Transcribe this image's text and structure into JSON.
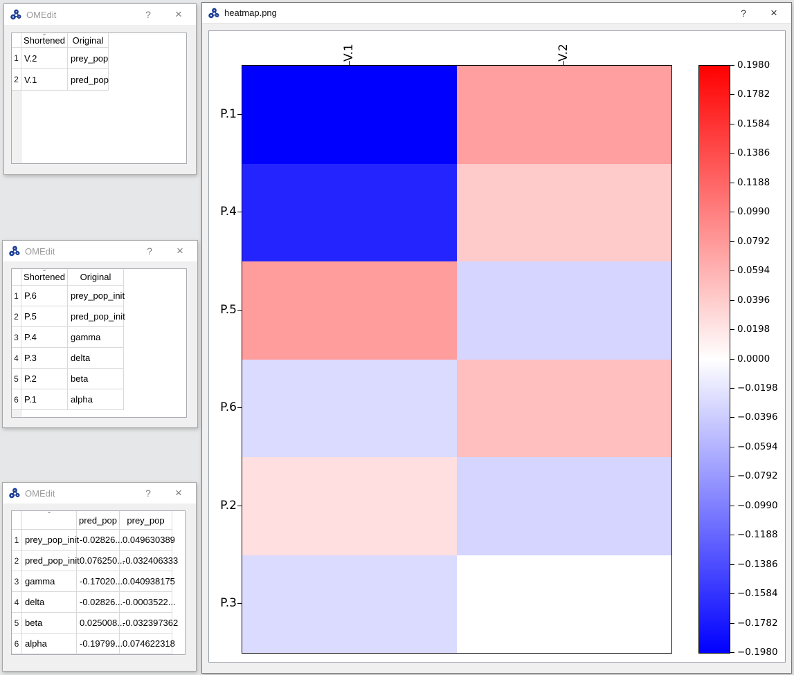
{
  "chrome": {
    "help_glyph": "?",
    "close_glyph": "×",
    "sort_glyph": "⌄"
  },
  "windows": [
    {
      "title": "OMEdit",
      "table": {
        "headers": [
          "Shortened",
          "Original"
        ],
        "sort_column": 0,
        "row_numbers": [
          "1",
          "2"
        ],
        "rows": [
          [
            "V.2",
            "prey_pop"
          ],
          [
            "V.1",
            "pred_pop"
          ]
        ]
      }
    },
    {
      "title": "OMEdit",
      "table": {
        "headers": [
          "Shortened",
          "Original"
        ],
        "sort_column": 0,
        "row_numbers": [
          "1",
          "2",
          "3",
          "4",
          "5",
          "6"
        ],
        "rows": [
          [
            "P.6",
            "prey_pop_init"
          ],
          [
            "P.5",
            "pred_pop_init"
          ],
          [
            "P.4",
            "gamma"
          ],
          [
            "P.3",
            "delta"
          ],
          [
            "P.2",
            "beta"
          ],
          [
            "P.1",
            "alpha"
          ]
        ]
      }
    },
    {
      "title": "OMEdit",
      "table": {
        "headers": [
          "",
          "pred_pop",
          "prey_pop"
        ],
        "sort_column": 0,
        "row_numbers": [
          "1",
          "2",
          "3",
          "4",
          "5",
          "6"
        ],
        "rows": [
          [
            "prey_pop_init",
            "-0.02826...",
            "0.049630389"
          ],
          [
            "pred_pop_init",
            "0.076250...",
            "-0.032406333"
          ],
          [
            "gamma",
            "-0.17020...",
            "0.040938175"
          ],
          [
            "delta",
            "-0.02826...",
            "-0.0003522..."
          ],
          [
            "beta",
            "0.025008...",
            "-0.032397362"
          ],
          [
            "alpha",
            "-0.19799...",
            "0.074622318"
          ]
        ]
      }
    },
    {
      "title": "heatmap.png"
    }
  ],
  "chart_data": {
    "type": "heatmap",
    "title": "",
    "columns": [
      "V.1",
      "V.2"
    ],
    "rows": [
      "P.1",
      "P.4",
      "P.5",
      "P.6",
      "P.2",
      "P.3"
    ],
    "values": [
      [
        -0.19799,
        0.074622318
      ],
      [
        -0.1702,
        0.040938175
      ],
      [
        0.07625,
        -0.032406333
      ],
      [
        -0.02826,
        0.049630389
      ],
      [
        0.025008,
        -0.032397362
      ],
      [
        -0.02826,
        -0.0003522
      ]
    ],
    "colormap": "bwr",
    "vmin": -0.198,
    "vmax": 0.198,
    "legend_position": "right-colorbar",
    "grid": false,
    "colorbar_tick_labels": [
      "0.1980",
      "0.1782",
      "0.1584",
      "0.1386",
      "0.1188",
      "0.0990",
      "0.0792",
      "0.0594",
      "0.0396",
      "0.0198",
      "0.0000",
      "−0.0198",
      "−0.0396",
      "−0.0594",
      "−0.0792",
      "−0.0990",
      "−0.1188",
      "−0.1386",
      "−0.1584",
      "−0.1782",
      "−0.1980"
    ],
    "colorbar_colors": {
      "top": "#ff0000",
      "mid": "#ffffff",
      "bottom": "#0000ff"
    }
  }
}
